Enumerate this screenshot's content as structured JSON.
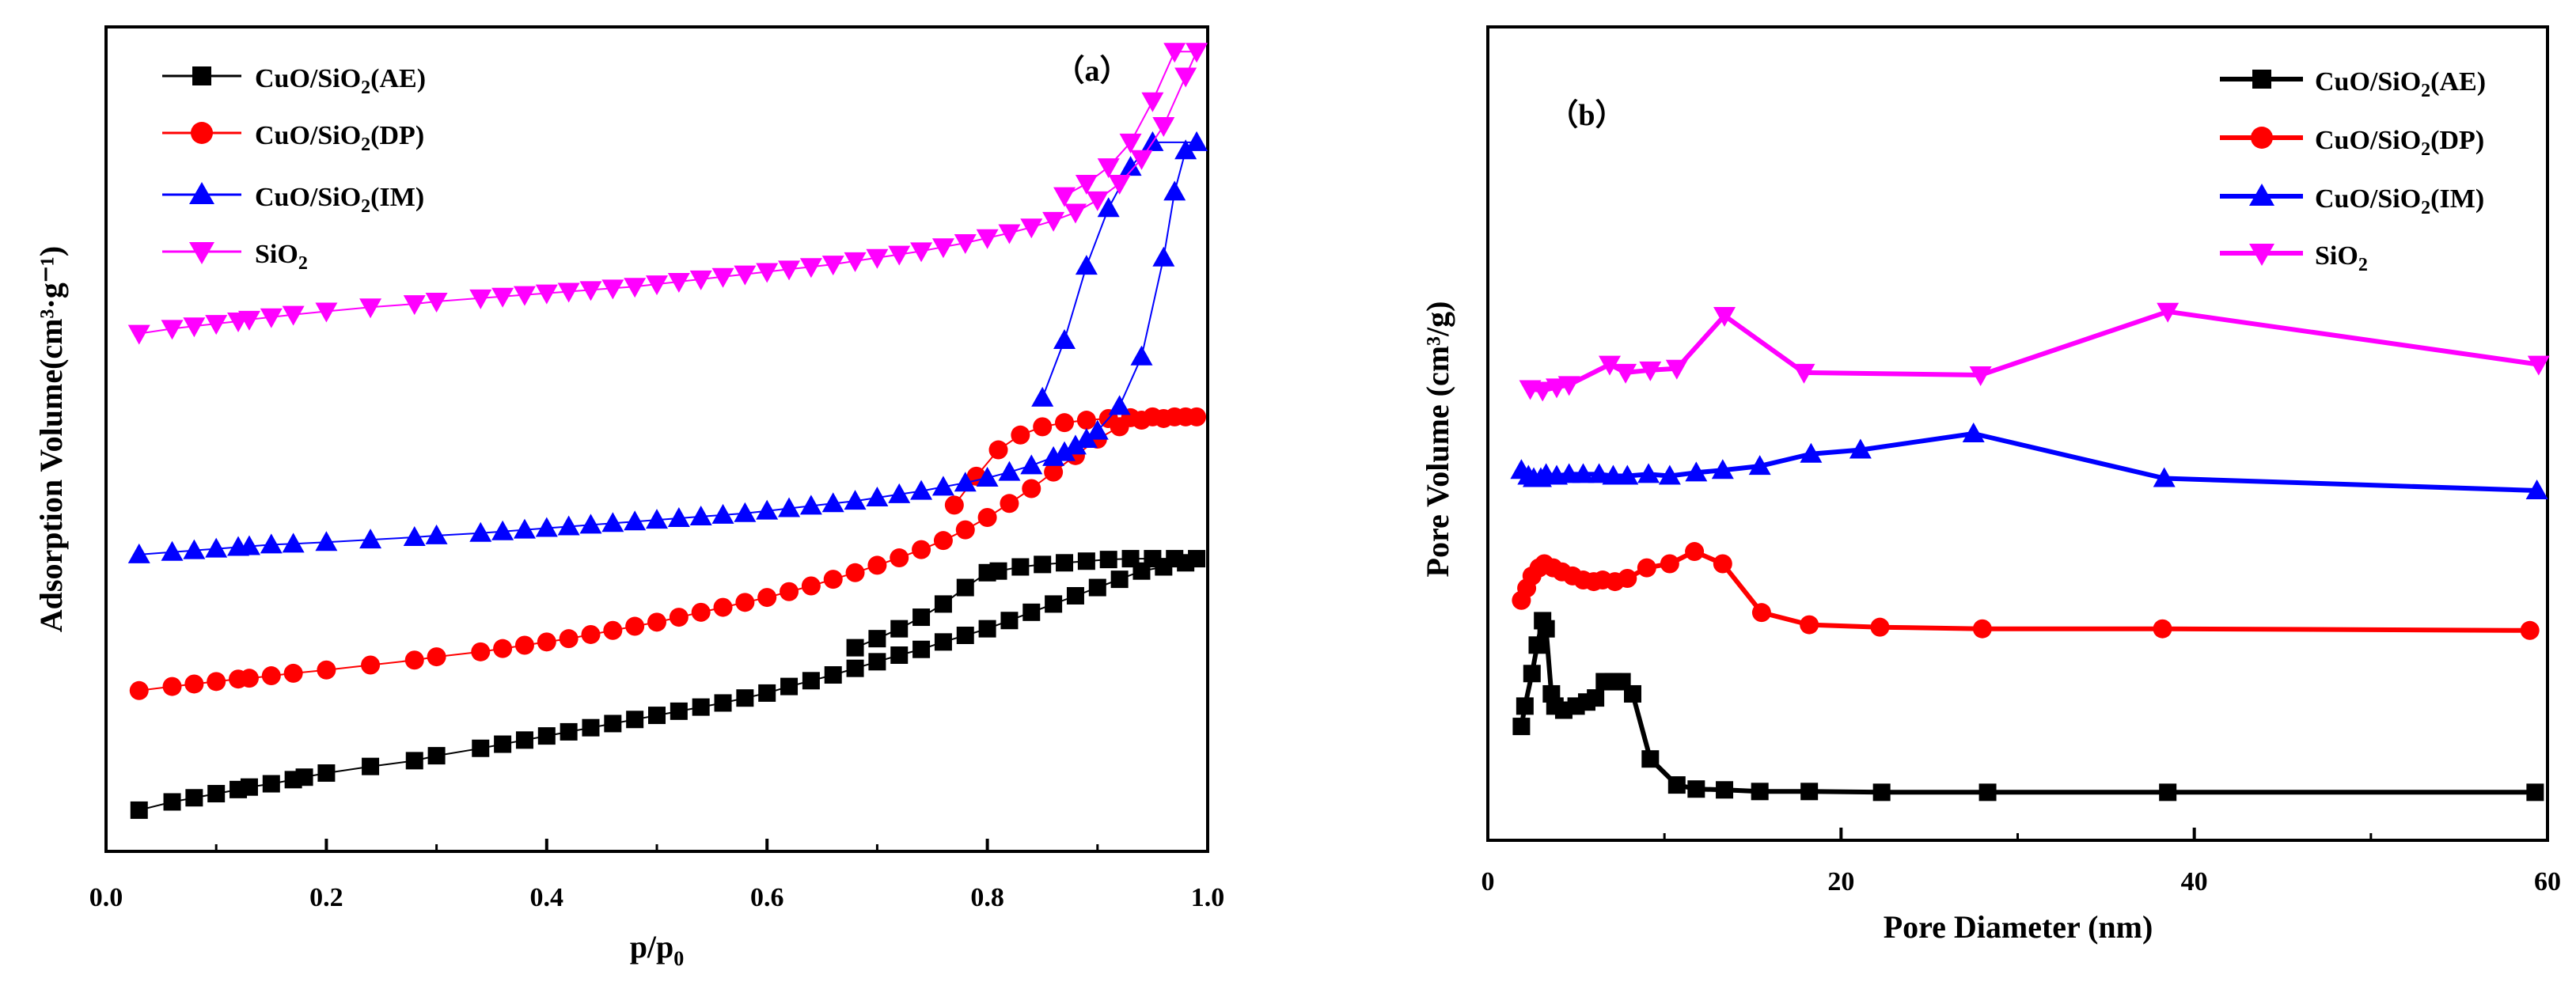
{
  "chart_data": [
    {
      "panel": "a",
      "type": "scatter",
      "panel_label": "（a）",
      "xlabel_main": "p/p",
      "xlabel_sub": "0",
      "ylabel": "Adsorption  Volume(cm³·g⁻¹)",
      "xlim": [
        0.0,
        1.0
      ],
      "ylim": [
        0.0,
        1.0
      ],
      "xticks": [
        "0.0",
        "0.2",
        "0.4",
        "0.6",
        "0.8",
        "1.0"
      ],
      "xtick_values": [
        0.0,
        0.2,
        0.4,
        0.6,
        0.8,
        1.0
      ],
      "yticks_visible": false,
      "legend": [
        "CuO/SiO2(AE)",
        "CuO/SiO2(DP)",
        "CuO/SiO2(IM)",
        "SiO2"
      ],
      "series": [
        {
          "name": "CuO/SiO2(AE)",
          "marker": "square",
          "color": "#000000",
          "x": [
            0.03,
            0.06,
            0.08,
            0.1,
            0.12,
            0.13,
            0.15,
            0.17,
            0.18,
            0.2,
            0.24,
            0.28,
            0.3,
            0.34,
            0.36,
            0.38,
            0.4,
            0.42,
            0.44,
            0.46,
            0.48,
            0.5,
            0.52,
            0.54,
            0.56,
            0.58,
            0.6,
            0.62,
            0.64,
            0.66,
            0.68,
            0.7,
            0.72,
            0.74,
            0.76,
            0.78,
            0.8,
            0.82,
            0.84,
            0.86,
            0.88,
            0.9,
            0.92,
            0.94,
            0.96,
            0.98,
            0.99,
            0.97,
            0.95,
            0.93,
            0.91,
            0.89,
            0.87,
            0.85,
            0.83,
            0.81,
            0.8,
            0.78,
            0.76,
            0.74,
            0.72,
            0.7,
            0.68
          ],
          "y": [
            0.05,
            0.06,
            0.065,
            0.07,
            0.075,
            0.078,
            0.082,
            0.087,
            0.09,
            0.095,
            0.103,
            0.11,
            0.116,
            0.125,
            0.13,
            0.135,
            0.14,
            0.145,
            0.15,
            0.155,
            0.16,
            0.165,
            0.17,
            0.175,
            0.18,
            0.186,
            0.192,
            0.2,
            0.207,
            0.214,
            0.222,
            0.23,
            0.238,
            0.245,
            0.254,
            0.262,
            0.27,
            0.28,
            0.29,
            0.3,
            0.31,
            0.32,
            0.33,
            0.34,
            0.345,
            0.35,
            0.355,
            0.355,
            0.355,
            0.355,
            0.354,
            0.352,
            0.35,
            0.348,
            0.345,
            0.34,
            0.338,
            0.32,
            0.3,
            0.284,
            0.27,
            0.258,
            0.247
          ]
        },
        {
          "name": "CuO/SiO2(DP)",
          "marker": "circle",
          "color": "#ff0000",
          "x": [
            0.03,
            0.06,
            0.08,
            0.1,
            0.12,
            0.13,
            0.15,
            0.17,
            0.2,
            0.24,
            0.28,
            0.3,
            0.34,
            0.36,
            0.38,
            0.4,
            0.42,
            0.44,
            0.46,
            0.48,
            0.5,
            0.52,
            0.54,
            0.56,
            0.58,
            0.6,
            0.62,
            0.64,
            0.66,
            0.68,
            0.7,
            0.72,
            0.74,
            0.76,
            0.78,
            0.8,
            0.82,
            0.84,
            0.86,
            0.88,
            0.9,
            0.92,
            0.94,
            0.96,
            0.98,
            0.99,
            0.97,
            0.95,
            0.93,
            0.91,
            0.89,
            0.87,
            0.85,
            0.83,
            0.81,
            0.79,
            0.77
          ],
          "y": [
            0.195,
            0.2,
            0.203,
            0.206,
            0.209,
            0.21,
            0.213,
            0.216,
            0.22,
            0.226,
            0.232,
            0.236,
            0.242,
            0.246,
            0.25,
            0.254,
            0.258,
            0.263,
            0.268,
            0.273,
            0.278,
            0.284,
            0.29,
            0.296,
            0.302,
            0.308,
            0.315,
            0.322,
            0.33,
            0.338,
            0.347,
            0.356,
            0.366,
            0.377,
            0.39,
            0.405,
            0.422,
            0.44,
            0.46,
            0.48,
            0.5,
            0.515,
            0.523,
            0.525,
            0.527,
            0.527,
            0.527,
            0.527,
            0.526,
            0.525,
            0.523,
            0.52,
            0.515,
            0.505,
            0.487,
            0.455,
            0.42
          ]
        },
        {
          "name": "CuO/SiO2(IM)",
          "marker": "triangle-up",
          "color": "#0000ff",
          "x": [
            0.03,
            0.06,
            0.08,
            0.1,
            0.12,
            0.13,
            0.15,
            0.17,
            0.2,
            0.24,
            0.28,
            0.3,
            0.34,
            0.36,
            0.38,
            0.4,
            0.42,
            0.44,
            0.46,
            0.48,
            0.5,
            0.52,
            0.54,
            0.56,
            0.58,
            0.6,
            0.62,
            0.64,
            0.66,
            0.68,
            0.7,
            0.72,
            0.74,
            0.76,
            0.78,
            0.8,
            0.82,
            0.84,
            0.86,
            0.87,
            0.88,
            0.89,
            0.9,
            0.92,
            0.94,
            0.96,
            0.97,
            0.98,
            0.99,
            0.95,
            0.93,
            0.91,
            0.89,
            0.87,
            0.85
          ],
          "y": [
            0.36,
            0.363,
            0.365,
            0.367,
            0.369,
            0.37,
            0.372,
            0.373,
            0.375,
            0.378,
            0.381,
            0.383,
            0.386,
            0.388,
            0.39,
            0.392,
            0.394,
            0.396,
            0.398,
            0.4,
            0.402,
            0.404,
            0.406,
            0.408,
            0.41,
            0.413,
            0.416,
            0.419,
            0.422,
            0.425,
            0.429,
            0.433,
            0.437,
            0.442,
            0.447,
            0.453,
            0.46,
            0.468,
            0.478,
            0.484,
            0.492,
            0.5,
            0.51,
            0.54,
            0.6,
            0.72,
            0.8,
            0.85,
            0.86,
            0.86,
            0.83,
            0.78,
            0.71,
            0.62,
            0.55
          ]
        },
        {
          "name": "SiO2",
          "marker": "triangle-down",
          "color": "#ff00ff",
          "x": [
            0.03,
            0.06,
            0.08,
            0.1,
            0.12,
            0.13,
            0.15,
            0.17,
            0.2,
            0.24,
            0.28,
            0.3,
            0.34,
            0.36,
            0.38,
            0.4,
            0.42,
            0.44,
            0.46,
            0.48,
            0.5,
            0.52,
            0.54,
            0.56,
            0.58,
            0.6,
            0.62,
            0.64,
            0.66,
            0.68,
            0.7,
            0.72,
            0.74,
            0.76,
            0.78,
            0.8,
            0.82,
            0.84,
            0.86,
            0.88,
            0.9,
            0.92,
            0.94,
            0.96,
            0.98,
            0.99,
            0.97,
            0.95,
            0.93,
            0.91,
            0.89,
            0.87
          ],
          "y": [
            0.628,
            0.634,
            0.637,
            0.64,
            0.643,
            0.645,
            0.648,
            0.651,
            0.655,
            0.66,
            0.664,
            0.667,
            0.671,
            0.673,
            0.675,
            0.677,
            0.679,
            0.681,
            0.683,
            0.685,
            0.688,
            0.691,
            0.694,
            0.697,
            0.7,
            0.703,
            0.706,
            0.709,
            0.712,
            0.716,
            0.72,
            0.724,
            0.728,
            0.733,
            0.738,
            0.744,
            0.75,
            0.757,
            0.765,
            0.775,
            0.79,
            0.81,
            0.84,
            0.88,
            0.94,
            0.97,
            0.97,
            0.91,
            0.86,
            0.83,
            0.81,
            0.795
          ]
        }
      ]
    },
    {
      "panel": "b",
      "type": "line",
      "panel_label": "（b）",
      "xlabel": "Pore Diameter (nm)",
      "ylabel": "Pore Volume (cm³/g)",
      "xlim": [
        0,
        60
      ],
      "ylim": [
        0.0,
        1.0
      ],
      "xticks": [
        "0",
        "20",
        "40",
        "60"
      ],
      "xtick_values": [
        0,
        20,
        40,
        60
      ],
      "yticks_visible": false,
      "legend": [
        "CuO/SiO2(AE)",
        "CuO/SiO2(DP)",
        "CuO/SiO2(IM)",
        "SiO2"
      ],
      "series": [
        {
          "name": "CuO/SiO2(AE)",
          "marker": "square",
          "color": "#000000",
          "x": [
            1.9,
            2.1,
            2.5,
            2.8,
            3.1,
            3.3,
            3.6,
            3.8,
            4.3,
            5.0,
            5.6,
            6.1,
            6.6,
            7.1,
            7.6,
            8.2,
            9.2,
            10.7,
            11.8,
            13.4,
            15.4,
            18.2,
            22.3,
            28.3,
            38.5,
            59.3
          ],
          "y": [
            0.14,
            0.165,
            0.205,
            0.24,
            0.27,
            0.26,
            0.18,
            0.165,
            0.16,
            0.165,
            0.17,
            0.175,
            0.195,
            0.195,
            0.195,
            0.18,
            0.1,
            0.068,
            0.063,
            0.062,
            0.06,
            0.06,
            0.059,
            0.059,
            0.059,
            0.059
          ]
        },
        {
          "name": "CuO/SiO2(DP)",
          "marker": "circle",
          "color": "#ff0000",
          "x": [
            1.9,
            2.2,
            2.5,
            2.9,
            3.2,
            3.7,
            4.2,
            4.8,
            5.4,
            6.0,
            6.5,
            7.2,
            7.9,
            9.0,
            10.3,
            11.7,
            13.3,
            15.5,
            18.2,
            22.2,
            28.0,
            38.2,
            59.0
          ],
          "y": [
            0.295,
            0.31,
            0.325,
            0.335,
            0.34,
            0.335,
            0.33,
            0.325,
            0.32,
            0.318,
            0.32,
            0.318,
            0.322,
            0.335,
            0.34,
            0.355,
            0.34,
            0.28,
            0.265,
            0.262,
            0.26,
            0.26,
            0.258
          ]
        },
        {
          "name": "CuO/SiO2(IM)",
          "marker": "triangle-up",
          "color": "#0000ff",
          "x": [
            1.9,
            2.3,
            2.6,
            3.0,
            3.3,
            3.9,
            4.6,
            5.4,
            6.3,
            7.1,
            7.9,
            9.1,
            10.3,
            11.8,
            13.3,
            15.4,
            18.3,
            21.1,
            27.5,
            38.3,
            59.4
          ],
          "y": [
            0.455,
            0.448,
            0.445,
            0.445,
            0.45,
            0.448,
            0.45,
            0.45,
            0.45,
            0.448,
            0.448,
            0.45,
            0.448,
            0.452,
            0.455,
            0.46,
            0.475,
            0.48,
            0.5,
            0.445,
            0.43
          ]
        },
        {
          "name": "SiO2",
          "marker": "triangle-down",
          "color": "#ff00ff",
          "x": [
            2.4,
            3.1,
            3.9,
            4.6,
            6.9,
            7.8,
            9.2,
            10.7,
            13.4,
            17.9,
            27.9,
            38.5,
            59.5
          ],
          "y": [
            0.555,
            0.553,
            0.557,
            0.56,
            0.585,
            0.575,
            0.578,
            0.58,
            0.645,
            0.575,
            0.572,
            0.65,
            0.585
          ]
        }
      ]
    }
  ]
}
